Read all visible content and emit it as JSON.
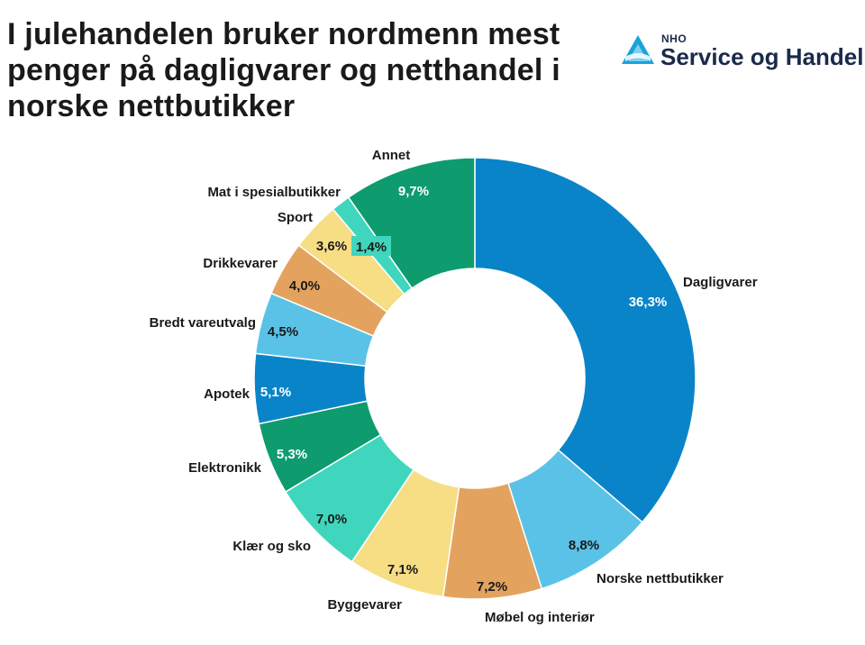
{
  "header": {
    "title_lines": [
      "I julehandelen bruker nordmenn mest",
      "penger på dagligvarer og netthandel i",
      "norske nettbutikker"
    ]
  },
  "logo": {
    "small": "NHO",
    "text": "Service og Handel",
    "colors": {
      "mark": "#1aa3d9",
      "text": "#1b2a4a"
    }
  },
  "chart_data": {
    "type": "pie",
    "donut": true,
    "title": "I julehandelen bruker nordmenn mest penger på dagligvarer og netthandel i norske nettbutikker",
    "slices": [
      {
        "label": "Dagligvarer",
        "value": 36.3,
        "display": "36,3%",
        "color": "#0a84c9",
        "text_color": "#ffffff"
      },
      {
        "label": "Norske nettbutikker",
        "value": 8.8,
        "display": "8,8%",
        "color": "#5bc2e7",
        "text_color": "#1a1a1a"
      },
      {
        "label": "Møbel og interiør",
        "value": 7.2,
        "display": "7,2%",
        "color": "#e3a35e",
        "text_color": "#1a1a1a"
      },
      {
        "label": "Byggevarer",
        "value": 7.1,
        "display": "7,1%",
        "color": "#f7dd84",
        "text_color": "#1a1a1a"
      },
      {
        "label": "Klær og sko",
        "value": 7.0,
        "display": "7,0%",
        "color": "#3fd6bd",
        "text_color": "#1a1a1a"
      },
      {
        "label": "Elektronikk",
        "value": 5.3,
        "display": "5,3%",
        "color": "#0e9b6e",
        "text_color": "#ffffff"
      },
      {
        "label": "Apotek",
        "value": 5.1,
        "display": "5,1%",
        "color": "#0a84c9",
        "text_color": "#ffffff"
      },
      {
        "label": "Bredt vareutvalg",
        "value": 4.5,
        "display": "4,5%",
        "color": "#5bc2e7",
        "text_color": "#1a1a1a"
      },
      {
        "label": "Drikkevarer",
        "value": 4.0,
        "display": "4,0%",
        "color": "#e3a35e",
        "text_color": "#1a1a1a"
      },
      {
        "label": "Sport",
        "value": 3.6,
        "display": "3,6%",
        "color": "#f7dd84",
        "text_color": "#1a1a1a"
      },
      {
        "label": "Mat i spesialbutikker",
        "value": 1.4,
        "display": "1,4%",
        "color": "#3fd6bd",
        "text_color": "#1a1a1a"
      },
      {
        "label": "Annet",
        "value": 9.7,
        "display": "9,7%",
        "color": "#0e9b6e",
        "text_color": "#ffffff"
      }
    ]
  }
}
